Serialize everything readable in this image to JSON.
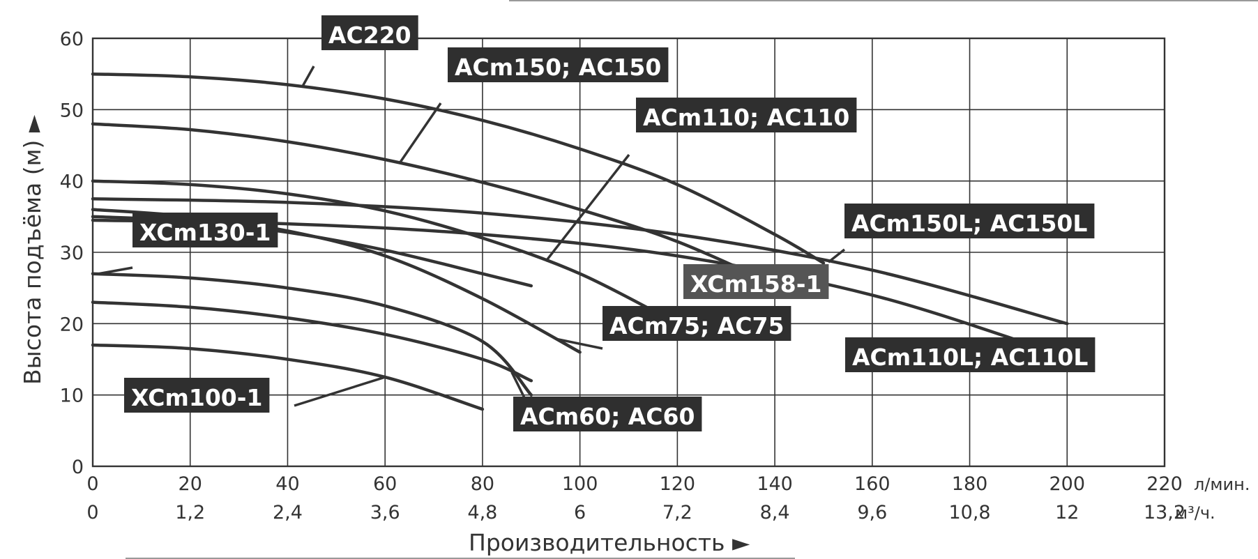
{
  "chart_data": {
    "type": "line",
    "xlabel": "Производительность ►",
    "ylabel": "Высота подъёма (м) ►",
    "x_unit": "л/мин.",
    "x2_unit": "м³/ч.",
    "xlim": [
      0,
      220
    ],
    "ylim": [
      0,
      60
    ],
    "x_ticks": [
      "0",
      "20",
      "40",
      "60",
      "80",
      "100",
      "120",
      "140",
      "160",
      "180",
      "200",
      "220"
    ],
    "x2_ticks": [
      "0",
      "1,2",
      "2,4",
      "3,6",
      "4,8",
      "6",
      "7,2",
      "8,4",
      "9,6",
      "10,8",
      "12",
      "13,2"
    ],
    "y_ticks": [
      "0",
      "10",
      "20",
      "30",
      "40",
      "50",
      "60"
    ],
    "grid": true,
    "series": [
      {
        "name": "AC220",
        "x": [
          0,
          20,
          40,
          60,
          80,
          100,
          120,
          140,
          150
        ],
        "y": [
          55,
          54.6,
          53.5,
          51.5,
          48.5,
          44.5,
          39.5,
          32.5,
          28.5
        ]
      },
      {
        "name": "ACm150; AC150",
        "x": [
          0,
          20,
          40,
          60,
          80,
          100,
          120,
          140
        ],
        "y": [
          48,
          47.2,
          45.5,
          43,
          39.8,
          36,
          31.5,
          25.5
        ]
      },
      {
        "name": "ACm110; AC110",
        "x": [
          0,
          20,
          40,
          60,
          80,
          100,
          120
        ],
        "y": [
          40,
          39.5,
          38.2,
          35.8,
          32,
          27,
          20
        ]
      },
      {
        "name": "ACm150L; AC150L",
        "x": [
          0,
          40,
          80,
          120,
          160,
          200
        ],
        "y": [
          37.5,
          37,
          35.5,
          32.5,
          27.5,
          20
        ]
      },
      {
        "name": "ACm110L; AC110L",
        "x": [
          0,
          40,
          80,
          120,
          160,
          195
        ],
        "y": [
          34.5,
          34,
          32.5,
          29.5,
          24,
          16.5
        ]
      },
      {
        "name": "ACm75; AC75",
        "x": [
          0,
          20,
          40,
          60,
          80,
          100
        ],
        "y": [
          36,
          35,
          33,
          29.5,
          23.5,
          16
        ]
      },
      {
        "name": "XCm158-1",
        "x": [
          0,
          20,
          40,
          60,
          80,
          90
        ],
        "y": [
          35,
          34.4,
          32.8,
          30.3,
          27,
          25.3
        ]
      },
      {
        "name": "XCm130-1",
        "x": [
          0,
          20,
          40,
          60,
          80,
          90
        ],
        "y": [
          27,
          26.4,
          25,
          22.5,
          17.5,
          10
        ]
      },
      {
        "name": "ACm60; AC60",
        "x": [
          0,
          20,
          40,
          60,
          80,
          90
        ],
        "y": [
          23,
          22.3,
          20.8,
          18.5,
          15,
          12
        ]
      },
      {
        "name": "XCm100-1",
        "x": [
          0,
          20,
          40,
          60,
          80
        ],
        "y": [
          17,
          16.5,
          15,
          12.5,
          8
        ]
      }
    ]
  }
}
